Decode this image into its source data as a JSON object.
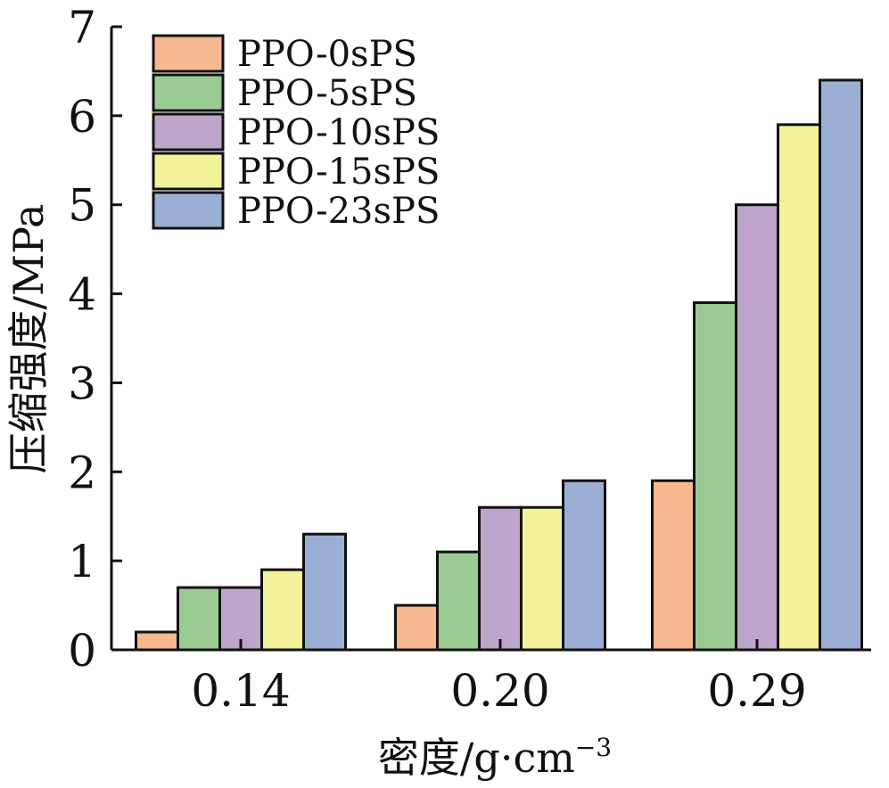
{
  "chart_data": {
    "type": "bar",
    "categories": [
      "0.14",
      "0.20",
      "0.29"
    ],
    "series": [
      {
        "name": "PPO-0sPS",
        "color": "#F6B88E",
        "values": [
          0.2,
          0.5,
          1.9
        ]
      },
      {
        "name": "PPO-5sPS",
        "color": "#9ACB92",
        "values": [
          0.7,
          1.1,
          3.9
        ]
      },
      {
        "name": "PPO-10sPS",
        "color": "#BCA5C8",
        "values": [
          0.7,
          1.6,
          5.0
        ]
      },
      {
        "name": "PPO-15sPS",
        "color": "#F2F29A",
        "values": [
          0.9,
          1.6,
          5.9
        ]
      },
      {
        "name": "PPO-23sPS",
        "color": "#9BAED4",
        "values": [
          1.3,
          1.9,
          6.4
        ]
      }
    ],
    "xlabel_main": "密度/g·cm",
    "xlabel_exp": "−3",
    "ylabel": "压缩强度/MPa",
    "ylim": [
      0,
      7
    ],
    "yticks": [
      "0",
      "1",
      "2",
      "3",
      "4",
      "5",
      "6",
      "7"
    ],
    "grid": false,
    "legend_position": "top-left"
  }
}
